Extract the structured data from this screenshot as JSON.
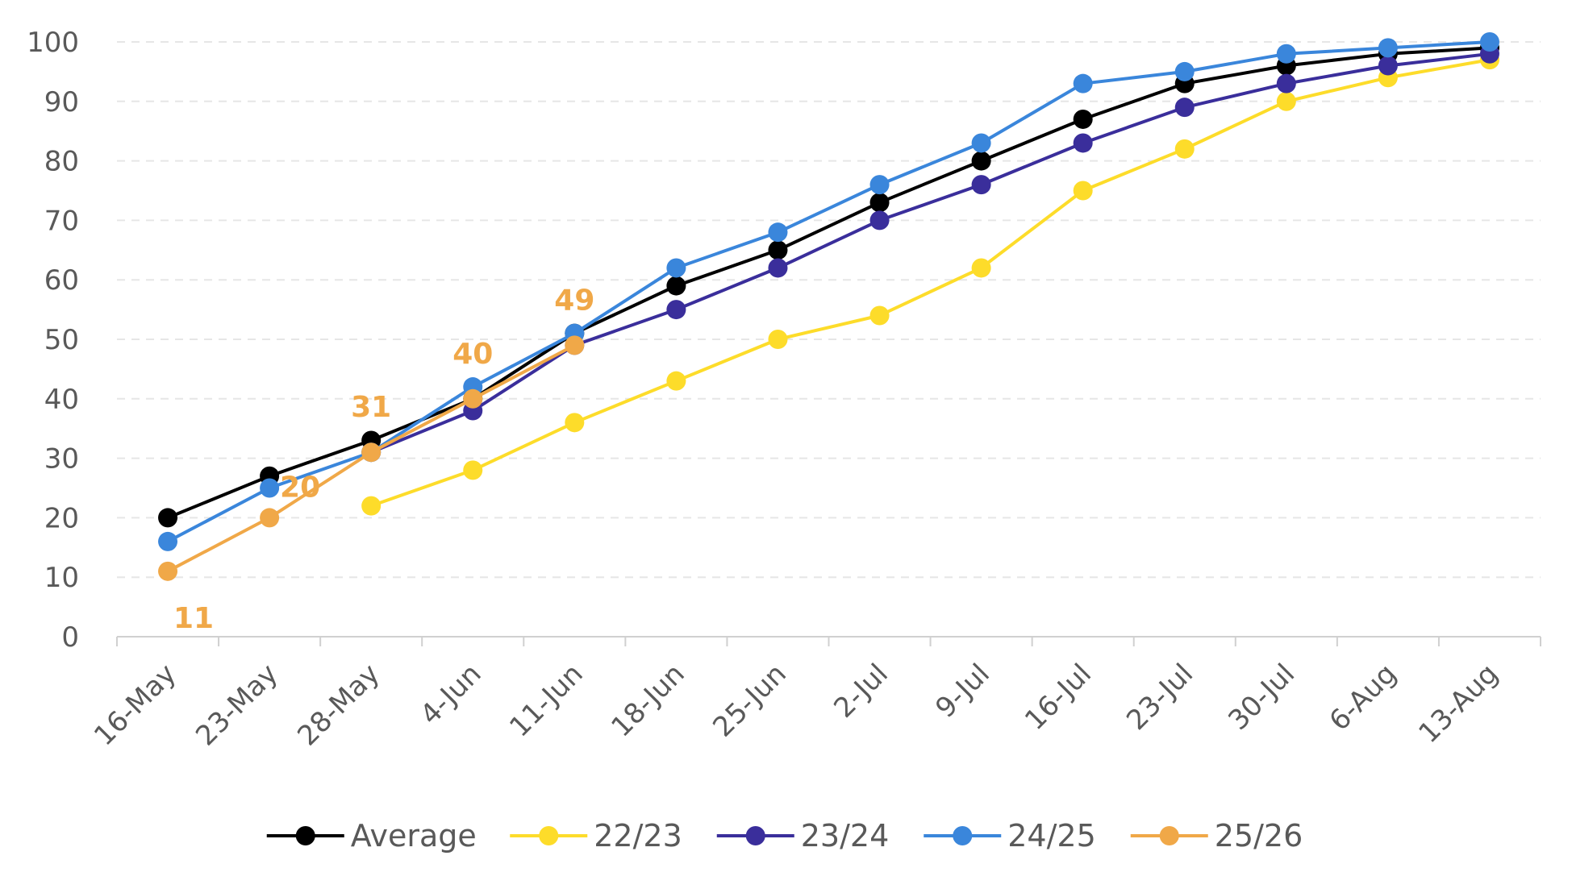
{
  "chart_data": {
    "type": "line",
    "title": "",
    "xlabel": "",
    "ylabel": "",
    "categories": [
      "16-May",
      "23-May",
      "28-May",
      "4-Jun",
      "11-Jun",
      "18-Jun",
      "25-Jun",
      "2-Jul",
      "9-Jul",
      "16-Jul",
      "23-Jul",
      "30-Jul",
      "6-Aug",
      "13-Aug"
    ],
    "ylim": [
      0,
      100
    ],
    "yticks": [
      0,
      10,
      20,
      30,
      40,
      50,
      60,
      70,
      80,
      90,
      100
    ],
    "grid": "horizontal dashed",
    "legend_position": "bottom",
    "series": [
      {
        "name": "Average",
        "color": "#000000",
        "values": [
          20,
          27,
          33,
          40,
          51,
          59,
          65,
          73,
          80,
          87,
          93,
          96,
          98,
          99
        ]
      },
      {
        "name": "22/23",
        "color": "#FDDC2A",
        "values": [
          null,
          null,
          22,
          28,
          36,
          43,
          50,
          54,
          62,
          75,
          82,
          90,
          94,
          97
        ]
      },
      {
        "name": "23/24",
        "color": "#3A2E9B",
        "values": [
          null,
          null,
          31,
          38,
          49,
          55,
          62,
          70,
          76,
          83,
          89,
          93,
          96,
          98
        ]
      },
      {
        "name": "24/25",
        "color": "#3A86DB",
        "values": [
          16,
          25,
          31,
          42,
          51,
          62,
          68,
          76,
          83,
          93,
          95,
          98,
          99,
          100
        ]
      },
      {
        "name": "25/26",
        "color": "#F0A848",
        "values": [
          11,
          20,
          31,
          40,
          49,
          null,
          null,
          null,
          null,
          null,
          null,
          null,
          null,
          null
        ],
        "data_labels": [
          "11",
          "20",
          "31",
          "40",
          "49"
        ]
      }
    ]
  }
}
